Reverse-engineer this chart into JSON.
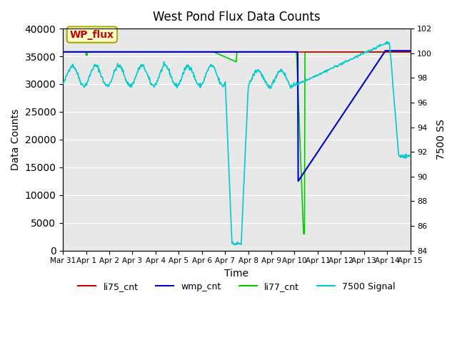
{
  "title": "West Pond Flux Data Counts",
  "xlabel": "Time",
  "ylabel_left": "Data Counts",
  "ylabel_right": "7500 SS",
  "ylim_left": [
    0,
    40000
  ],
  "ylim_right": [
    84,
    102
  ],
  "yticks_left": [
    0,
    5000,
    10000,
    15000,
    20000,
    25000,
    30000,
    35000,
    40000
  ],
  "yticks_right": [
    84,
    86,
    88,
    90,
    92,
    94,
    96,
    98,
    100,
    102
  ],
  "bg_color": "#e8e8e8",
  "annotation_text": "WP_flux",
  "annotation_color": "#cc0000",
  "annotation_bg": "#ffffcc",
  "annotation_border": "#aaaa00",
  "legend_entries": [
    "li75_cnt",
    "wmp_cnt",
    "li77_cnt",
    "7500 Signal"
  ],
  "legend_colors": [
    "#cc0000",
    "#0000cc",
    "#00cc00",
    "#00cccc"
  ]
}
